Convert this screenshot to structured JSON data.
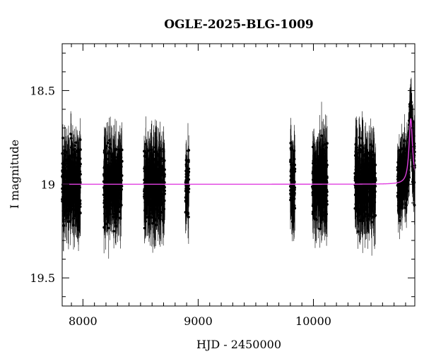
{
  "chart_data": {
    "type": "scatter",
    "title": "OGLE-2025-BLG-1009",
    "xlabel": "HJD - 2450000",
    "ylabel": "I magnitude",
    "xlim": [
      7820,
      10880
    ],
    "ylim": [
      19.65,
      18.25
    ],
    "y_inverted": true,
    "x_ticks": [
      8000,
      9000,
      10000
    ],
    "y_ticks": [
      18.5,
      19,
      19.5
    ],
    "x_tick_labels": [
      "8000",
      "9000",
      "10000"
    ],
    "y_tick_labels": [
      "18.5",
      "19",
      "19.5"
    ],
    "grid": false,
    "legend": "none",
    "series": [
      {
        "kind": "points-with-errorbars",
        "color": "#000000",
        "seasons": [
          {
            "x_start": 7820,
            "x_end": 7980,
            "y_center": 19.0,
            "scatter": 0.09,
            "err": 0.12
          },
          {
            "x_start": 8180,
            "x_end": 8340,
            "y_center": 19.0,
            "scatter": 0.09,
            "err": 0.12
          },
          {
            "x_start": 8530,
            "x_end": 8710,
            "y_center": 19.0,
            "scatter": 0.09,
            "err": 0.13
          },
          {
            "x_start": 8890,
            "x_end": 8920,
            "y_center": 19.0,
            "scatter": 0.08,
            "err": 0.11
          },
          {
            "x_start": 9800,
            "x_end": 9840,
            "y_center": 19.0,
            "scatter": 0.1,
            "err": 0.13
          },
          {
            "x_start": 9990,
            "x_end": 10120,
            "y_center": 19.0,
            "scatter": 0.09,
            "err": 0.13
          },
          {
            "x_start": 10360,
            "x_end": 10540,
            "y_center": 19.0,
            "scatter": 0.09,
            "err": 0.13
          },
          {
            "x_start": 10730,
            "x_end": 10880,
            "y_center": 19.0,
            "scatter": 0.08,
            "err": 0.11
          }
        ],
        "peak_points": [
          {
            "x": 10840,
            "y": 18.63
          },
          {
            "x": 10845,
            "y": 18.58
          },
          {
            "x": 10850,
            "y": 18.6
          },
          {
            "x": 10838,
            "y": 18.7
          },
          {
            "x": 10855,
            "y": 18.66
          },
          {
            "x": 10832,
            "y": 18.78
          }
        ]
      },
      {
        "kind": "model-curve",
        "color": "#e040e0",
        "baseline": 19.0,
        "peak_x": 10845,
        "peak_y": 18.65,
        "width": 18
      }
    ]
  }
}
